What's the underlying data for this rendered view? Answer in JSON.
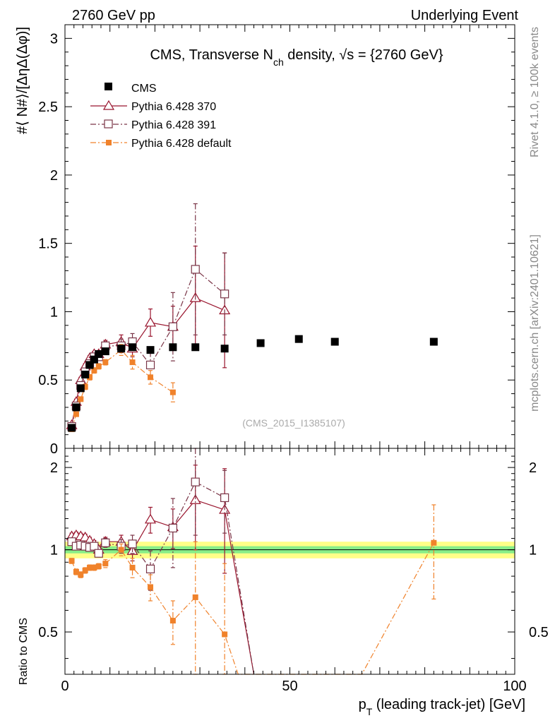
{
  "header": {
    "left": "2760 GeV pp",
    "right": "Underlying Event"
  },
  "side_labels": {
    "rivet": "Rivet 4.1.0, ≥ 100k events",
    "mcplots": "mcplots.cern.ch [arXiv:2401.10621]"
  },
  "chart_data": [
    {
      "type": "scatter",
      "panel": "main",
      "title": "CMS, Transverse N_ch density, √s = {2760 GeV}",
      "title_parts": {
        "pre": "CMS, Transverse N",
        "sub": "ch",
        "post": " density, √s = {2760 GeV}"
      },
      "ylabel": "#⟨ N#⟩/[ΔηΔ(Δφ)]",
      "xlim": [
        0,
        100
      ],
      "ylim": [
        0,
        3.1
      ],
      "yticks": [
        0,
        0.5,
        1,
        1.5,
        2,
        2.5,
        3
      ],
      "ytick_labels": [
        "0",
        "0.5",
        "1",
        "1.5",
        "2",
        "2.5",
        "3"
      ],
      "watermark": "(CMS_2015_I1385107)",
      "legend_position": "top-left",
      "series": [
        {
          "name": "CMS",
          "color": "#000000",
          "marker": "filled-square",
          "x": [
            1.5,
            2.5,
            3.5,
            4.5,
            5.5,
            6.5,
            7.5,
            9.0,
            12.5,
            15.0,
            19.0,
            24.0,
            29.0,
            35.5,
            43.5,
            52.0,
            60.0,
            82.0
          ],
          "y": [
            0.15,
            0.3,
            0.44,
            0.54,
            0.61,
            0.65,
            0.69,
            0.71,
            0.73,
            0.74,
            0.72,
            0.74,
            0.74,
            0.73,
            0.77,
            0.8,
            0.78,
            0.78
          ],
          "err": [
            0.01,
            0.01,
            0.01,
            0.01,
            0.01,
            0.01,
            0.01,
            0.01,
            0.01,
            0.01,
            0.01,
            0.01,
            0.01,
            0.01,
            0.01,
            0.01,
            0.01,
            0.01
          ]
        },
        {
          "name": "Pythia 6.428 370",
          "color": "#99142d",
          "marker": "open-triangle",
          "line": "solid",
          "x": [
            1.5,
            2.5,
            3.5,
            4.5,
            5.5,
            6.5,
            7.5,
            9.0,
            12.5,
            15.0,
            19.0,
            24.0,
            29.0,
            35.5
          ],
          "y": [
            0.17,
            0.34,
            0.5,
            0.6,
            0.66,
            0.69,
            0.69,
            0.76,
            0.78,
            0.73,
            0.92,
            0.89,
            1.1,
            1.01
          ],
          "err": [
            0.01,
            0.02,
            0.02,
            0.02,
            0.02,
            0.02,
            0.02,
            0.03,
            0.05,
            0.06,
            0.1,
            0.15,
            0.38,
            0.42
          ]
        },
        {
          "name": "Pythia 6.428 391",
          "color": "#7a3547",
          "marker": "open-square",
          "line": "dashdot",
          "x": [
            1.5,
            2.5,
            3.5,
            4.5,
            5.5,
            6.5,
            7.5,
            9.0,
            12.5,
            15.0,
            19.0,
            24.0,
            29.0,
            35.5
          ],
          "y": [
            0.16,
            0.31,
            0.46,
            0.56,
            0.62,
            0.67,
            0.67,
            0.75,
            0.75,
            0.78,
            0.61,
            0.89,
            1.31,
            1.13
          ],
          "err": [
            0.01,
            0.02,
            0.02,
            0.02,
            0.02,
            0.02,
            0.02,
            0.03,
            0.05,
            0.06,
            0.1,
            0.25,
            0.48,
            0.3
          ]
        },
        {
          "name": "Pythia 6.428 default",
          "color": "#f0822b",
          "marker": "filled-square-small",
          "line": "dashdot",
          "x": [
            1.5,
            2.5,
            3.5,
            4.5,
            5.5,
            6.5,
            7.5,
            9.0,
            12.5,
            15.0,
            19.0,
            24.0
          ],
          "y": [
            0.14,
            0.25,
            0.36,
            0.45,
            0.52,
            0.57,
            0.6,
            0.63,
            0.72,
            0.63,
            0.52,
            0.41
          ],
          "err": [
            0.01,
            0.01,
            0.01,
            0.02,
            0.02,
            0.02,
            0.02,
            0.02,
            0.04,
            0.05,
            0.05,
            0.07
          ]
        }
      ]
    },
    {
      "type": "line",
      "panel": "ratio",
      "ylabel": "Ratio to CMS",
      "xlabel": "p_T (leading track-jet) [GeV]",
      "xlabel_parts": {
        "pre": "p",
        "sub": "T",
        "post": " (leading track-jet) [GeV]"
      },
      "xlim": [
        0,
        100
      ],
      "ylim": [
        0.35,
        2.35
      ],
      "xticks": [
        0,
        50,
        100
      ],
      "xtick_labels": [
        "0",
        "50",
        "100"
      ],
      "yticks": [
        0.5,
        1,
        2
      ],
      "ytick_labels": [
        "0.5",
        "1",
        "2"
      ],
      "bands": [
        {
          "name": "outer",
          "color": "#ffff88",
          "lo": 0.93,
          "hi": 1.07
        },
        {
          "name": "inner",
          "color": "#88ee88",
          "lo": 0.97,
          "hi": 1.03
        }
      ],
      "series": [
        {
          "name": "Pythia 6.428 370",
          "color": "#99142d",
          "marker": "open-triangle",
          "line": "solid",
          "x": [
            1.5,
            2.5,
            3.5,
            4.5,
            5.5,
            6.5,
            7.5,
            9.0,
            12.5,
            15.0,
            19.0,
            24.0,
            29.0,
            35.5,
            42.0
          ],
          "y": [
            1.12,
            1.13,
            1.12,
            1.11,
            1.08,
            1.05,
            1.0,
            1.07,
            1.07,
            0.99,
            1.29,
            1.21,
            1.52,
            1.4,
            0.3
          ],
          "err": [
            0.03,
            0.03,
            0.03,
            0.03,
            0.03,
            0.03,
            0.03,
            0.04,
            0.06,
            0.08,
            0.14,
            0.2,
            0.52,
            0.58,
            0.0
          ]
        },
        {
          "name": "Pythia 6.428 391",
          "color": "#7a3547",
          "marker": "open-square",
          "line": "dashdot",
          "x": [
            1.5,
            2.5,
            3.5,
            4.5,
            5.5,
            6.5,
            7.5,
            9.0,
            12.5,
            15.0,
            19.0,
            24.0,
            29.0,
            35.5,
            42.0
          ],
          "y": [
            1.07,
            1.03,
            1.04,
            1.03,
            1.02,
            1.03,
            0.97,
            1.06,
            1.03,
            1.05,
            0.85,
            1.2,
            1.77,
            1.55,
            0.3
          ],
          "err": [
            0.03,
            0.03,
            0.03,
            0.03,
            0.03,
            0.03,
            0.03,
            0.04,
            0.06,
            0.08,
            0.14,
            0.34,
            0.64,
            0.4,
            0.0
          ]
        },
        {
          "name": "Pythia 6.428 default",
          "color": "#f0822b",
          "marker": "filled-square-small",
          "line": "dashdot",
          "x": [
            1.5,
            2.5,
            3.5,
            4.5,
            5.5,
            6.5,
            7.5,
            9.0,
            12.5,
            15.0,
            19.0,
            24.0,
            29.0,
            35.5,
            38.5,
            66.0,
            82.0
          ],
          "y": [
            0.91,
            0.83,
            0.81,
            0.84,
            0.86,
            0.86,
            0.87,
            0.89,
            1.0,
            0.86,
            0.73,
            0.55,
            0.67,
            0.49,
            0.3,
            0.3,
            1.06
          ],
          "err": [
            0.02,
            0.02,
            0.02,
            0.02,
            0.02,
            0.02,
            0.02,
            0.03,
            0.05,
            0.07,
            0.08,
            0.1,
            0.4,
            0.4,
            0.0,
            0.0,
            0.4
          ]
        }
      ]
    }
  ]
}
